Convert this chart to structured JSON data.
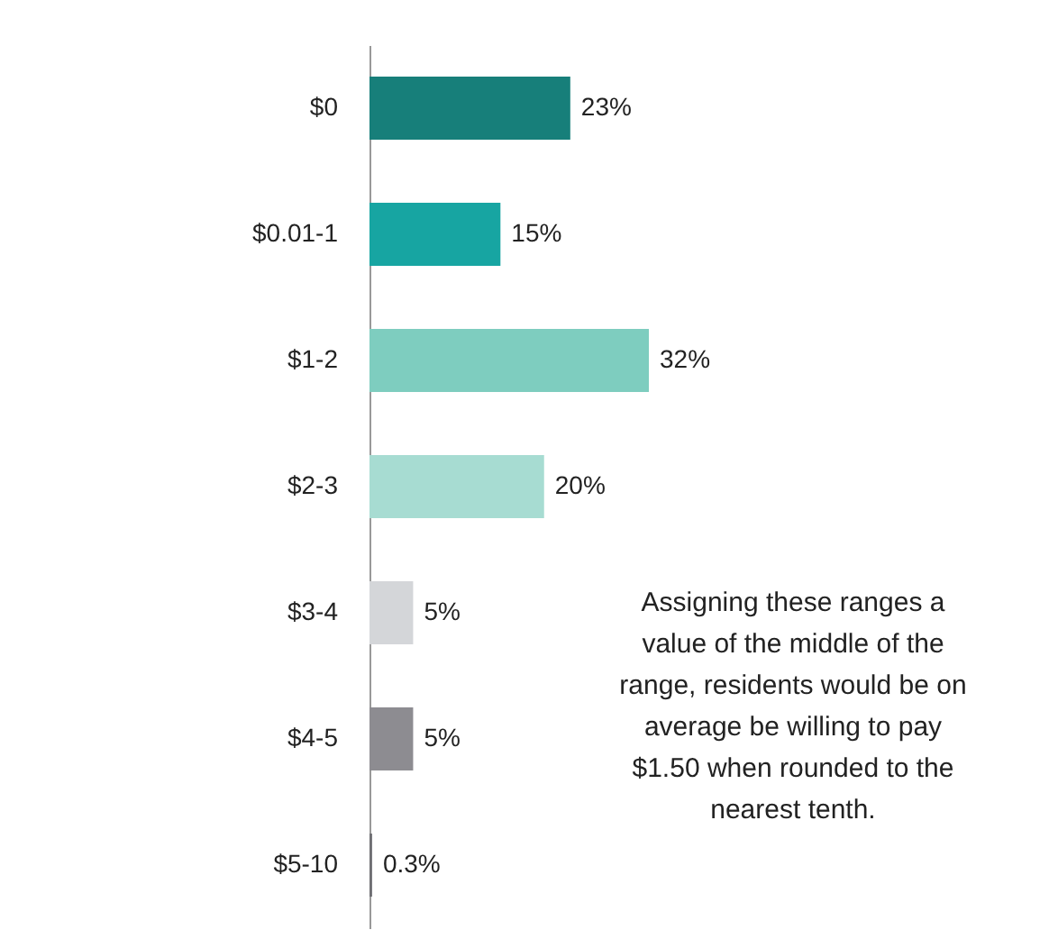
{
  "chart_data": {
    "type": "bar",
    "orientation": "horizontal",
    "categories": [
      "$0",
      "$0.01-1",
      "$1-2",
      "$2-3",
      "$3-4",
      "$4-5",
      "$5-10"
    ],
    "values": [
      23,
      15,
      32,
      20,
      5,
      5,
      0.3
    ],
    "value_labels": [
      "23%",
      "15%",
      "32%",
      "20%",
      "5%",
      "5%",
      "0.3%"
    ],
    "colors": [
      "#177f7a",
      "#17a5a2",
      "#7ecdbf",
      "#a7dcd2",
      "#d4d6d9",
      "#8d8c91",
      "#6f6f73"
    ],
    "annotations": [
      "Assigning these ranges a value of the middle of the range, residents would be on average be willing to pay $1.50 when rounded to the nearest tenth."
    ]
  }
}
